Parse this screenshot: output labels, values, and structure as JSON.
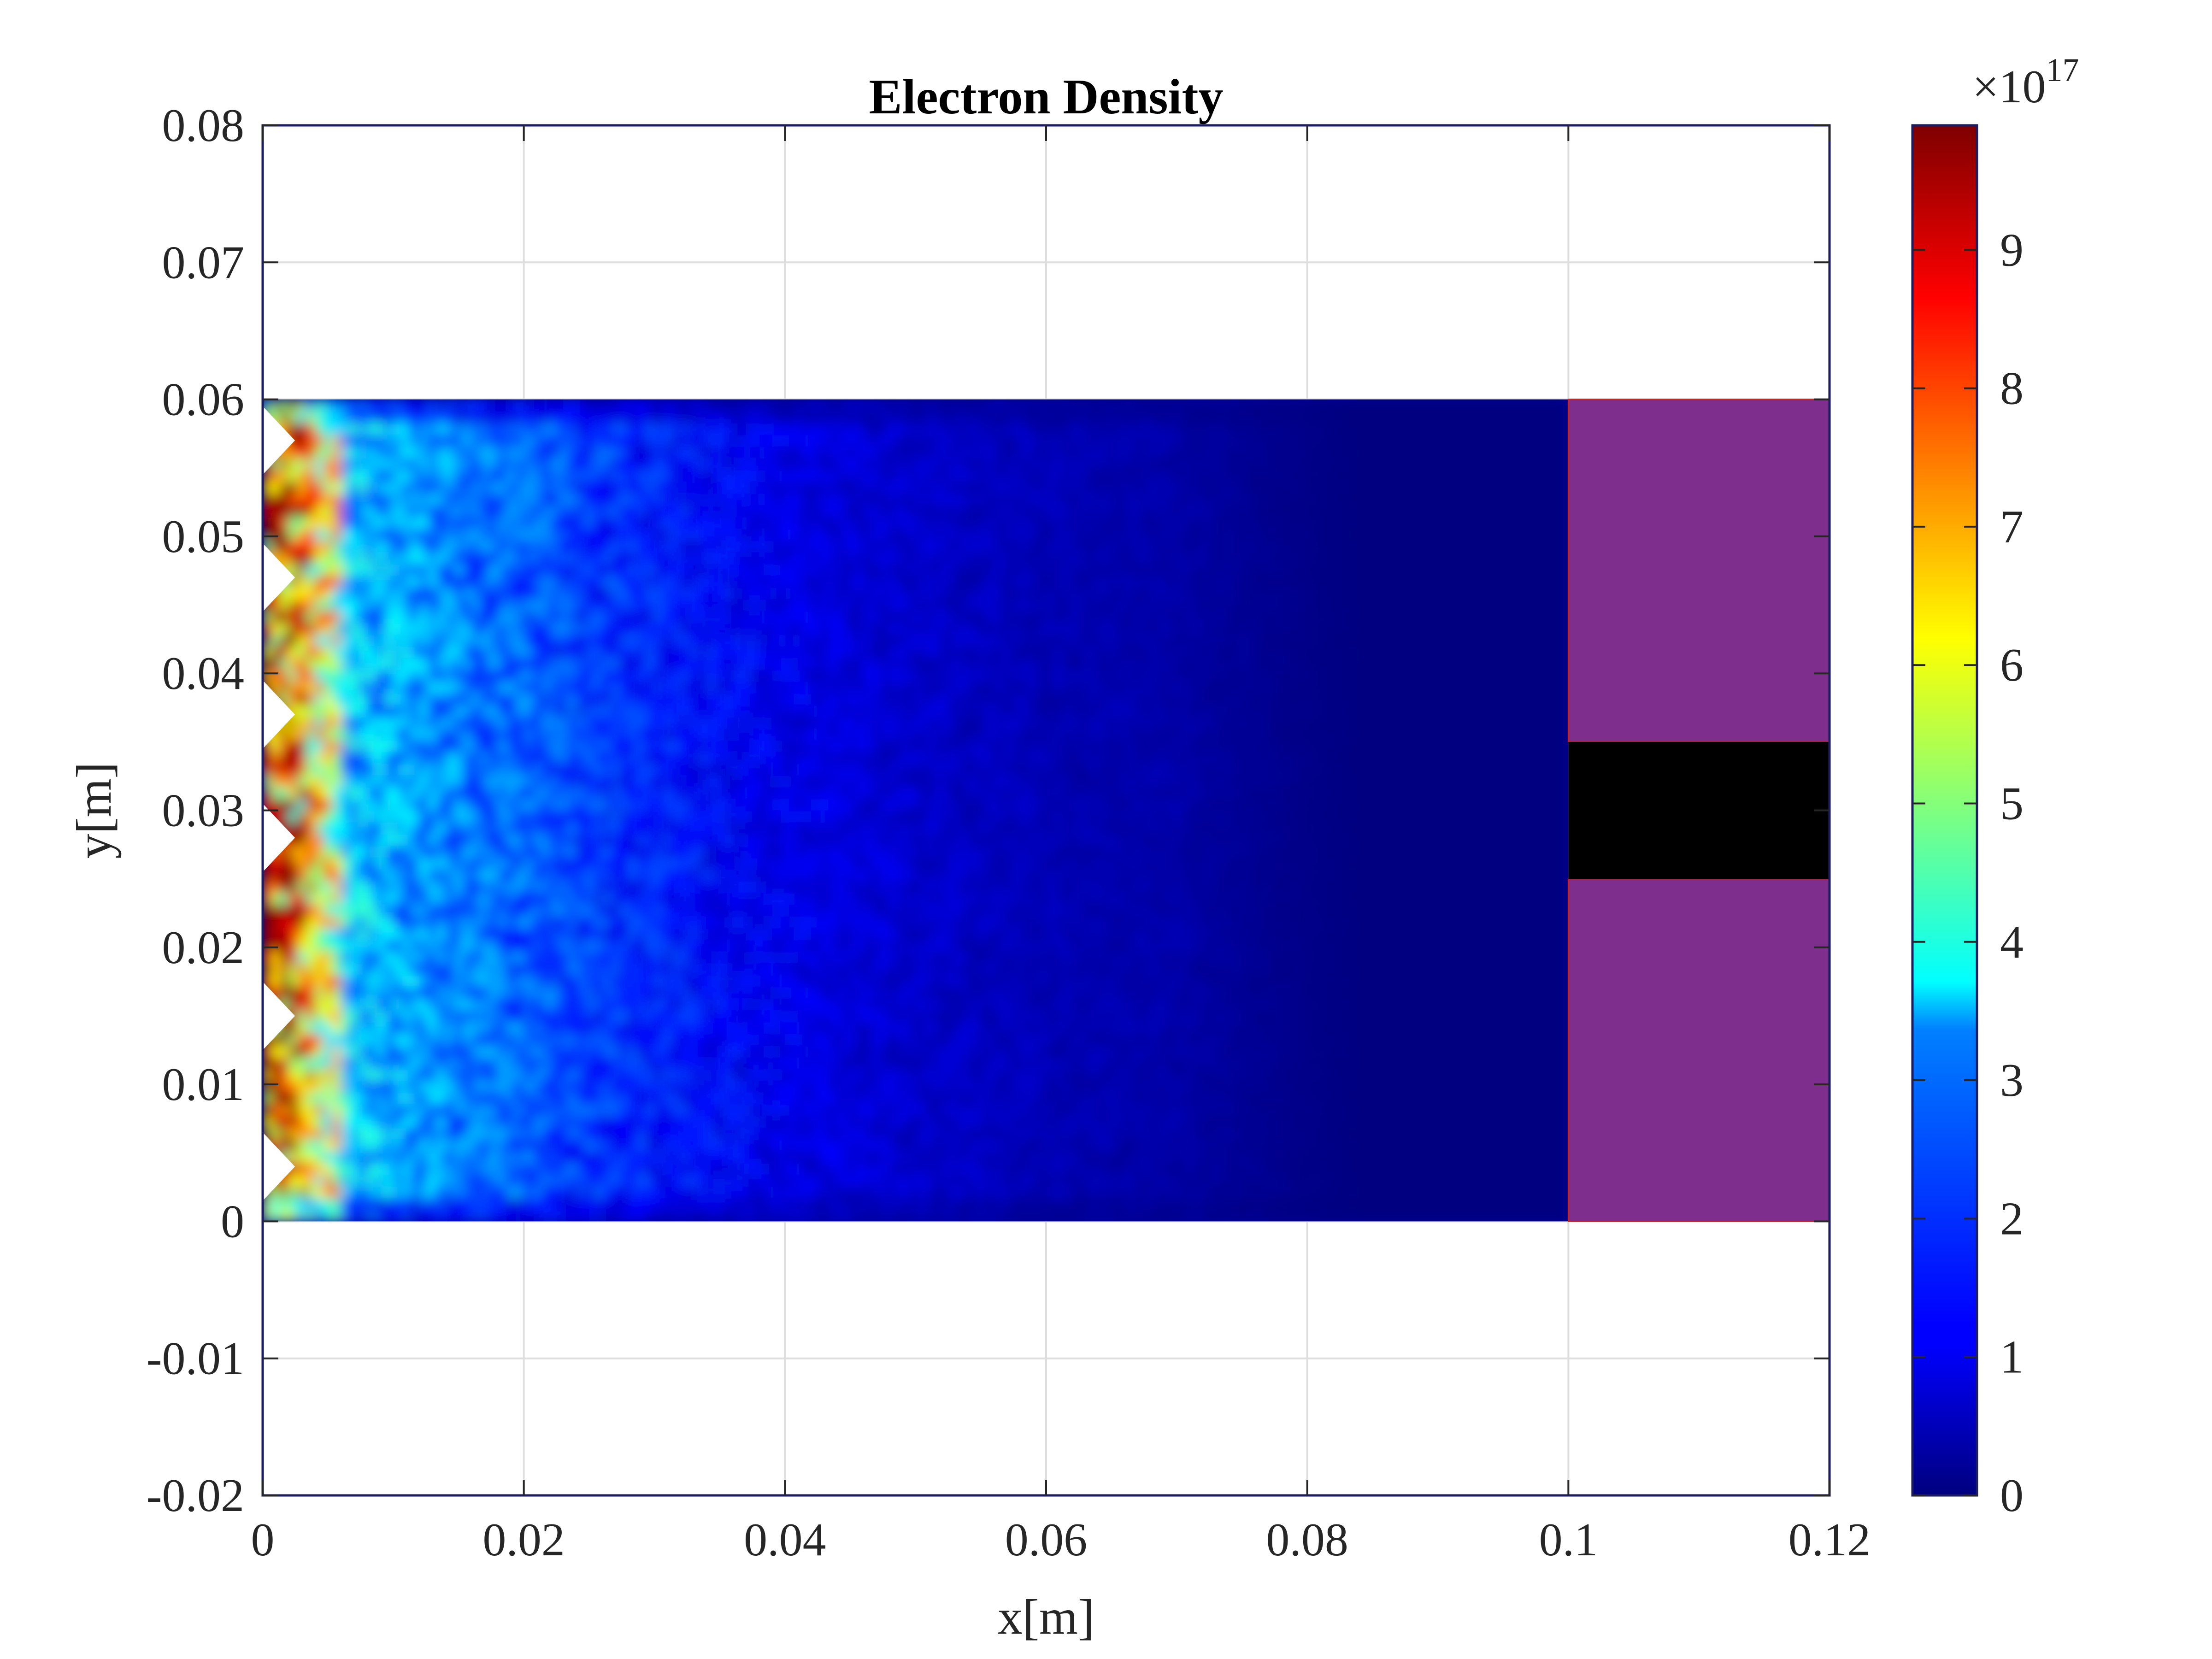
{
  "chart_data": {
    "type": "heatmap",
    "title": "Electron Density",
    "xlabel": "x[m]",
    "ylabel": "y[m]",
    "xlim": [
      0,
      0.12
    ],
    "ylim": [
      -0.02,
      0.08
    ],
    "x_ticks": [
      "0",
      "0.02",
      "0.04",
      "0.06",
      "0.08",
      "0.1",
      "0.12"
    ],
    "x_tick_values": [
      0,
      0.02,
      0.04,
      0.06,
      0.08,
      0.1,
      0.12
    ],
    "y_ticks": [
      "-0.02",
      "-0.01",
      "0",
      "0.01",
      "0.02",
      "0.03",
      "0.04",
      "0.05",
      "0.06",
      "0.07",
      "0.08"
    ],
    "y_tick_values": [
      -0.02,
      -0.01,
      0,
      0.01,
      0.02,
      0.03,
      0.04,
      0.05,
      0.06,
      0.07,
      0.08
    ],
    "grid": true,
    "colormap": "jet",
    "colorbar": {
      "range": [
        0,
        9.9
      ],
      "ticks": [
        "0",
        "1",
        "2",
        "3",
        "4",
        "5",
        "6",
        "7",
        "8",
        "9"
      ],
      "tick_values": [
        0,
        1,
        2,
        3,
        4,
        5,
        6,
        7,
        8,
        9
      ],
      "exponent_prefix": "×10",
      "exponent": "17",
      "location": "right"
    },
    "density_region": {
      "x_range": [
        0,
        0.1
      ],
      "y_range": [
        0,
        0.06
      ],
      "description_values": {
        "max_near_x0": 9.5,
        "edge_band_x": 0.006,
        "decay_to_zero_x": 0.085
      }
    },
    "overlays": [
      {
        "name": "electrode-top",
        "x_range": [
          0.1,
          0.12
        ],
        "y_range": [
          0.035,
          0.06
        ],
        "color": "#7e2f8e"
      },
      {
        "name": "electrode-bottom",
        "x_range": [
          0.1,
          0.12
        ],
        "y_range": [
          0,
          0.025
        ],
        "color": "#7e2f8e"
      },
      {
        "name": "gap",
        "x_range": [
          0.1,
          0.12
        ],
        "y_range": [
          0.025,
          0.035
        ],
        "color": "#000000"
      }
    ]
  }
}
